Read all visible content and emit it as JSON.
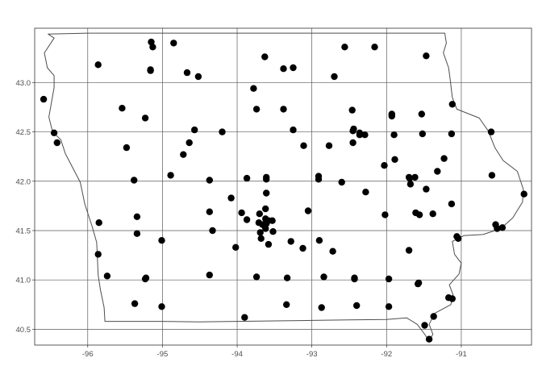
{
  "chart_data": {
    "type": "scatter",
    "title": "",
    "xlabel": "",
    "ylabel": "",
    "xlim": [
      -96.71,
      -90.06
    ],
    "ylim": [
      40.34,
      43.55
    ],
    "x_ticks": [
      -96,
      -95,
      -94,
      -93,
      -92,
      -91
    ],
    "y_ticks": [
      40.5,
      41.0,
      41.5,
      42.0,
      42.5,
      43.0
    ],
    "x_tick_labels": [
      "-96",
      "-95",
      "-94",
      "-93",
      "-92",
      "-91"
    ],
    "y_tick_labels": [
      "40.5",
      "41.0",
      "41.5",
      "42.0",
      "42.5",
      "43.0"
    ],
    "grid": true,
    "colors": {
      "points": "#000000",
      "boundary": "#4d4d4d",
      "grid": "#5a5a5a",
      "frame": "#333333"
    },
    "boundary": [
      [
        -96.53,
        43.49
      ],
      [
        -96.45,
        43.45
      ],
      [
        -96.58,
        43.3
      ],
      [
        -96.54,
        43.15
      ],
      [
        -96.45,
        43.07
      ],
      [
        -96.45,
        42.95
      ],
      [
        -96.52,
        42.65
      ],
      [
        -96.47,
        42.5
      ],
      [
        -96.36,
        42.42
      ],
      [
        -96.3,
        42.28
      ],
      [
        -96.1,
        41.99
      ],
      [
        -96.04,
        41.77
      ],
      [
        -95.94,
        41.54
      ],
      [
        -95.88,
        41.38
      ],
      [
        -95.86,
        41.05
      ],
      [
        -95.83,
        40.9
      ],
      [
        -95.78,
        40.72
      ],
      [
        -95.77,
        40.58
      ],
      [
        -95.6,
        40.58
      ],
      [
        -95.0,
        40.58
      ],
      [
        -94.5,
        40.575
      ],
      [
        -94.0,
        40.58
      ],
      [
        -93.5,
        40.585
      ],
      [
        -93.0,
        40.59
      ],
      [
        -92.5,
        40.595
      ],
      [
        -92.0,
        40.6
      ],
      [
        -91.73,
        40.615
      ],
      [
        -91.59,
        40.55
      ],
      [
        -91.49,
        40.45
      ],
      [
        -91.43,
        40.38
      ],
      [
        -91.38,
        40.45
      ],
      [
        -91.43,
        40.55
      ],
      [
        -91.36,
        40.66
      ],
      [
        -91.14,
        40.75
      ],
      [
        -91.11,
        40.85
      ],
      [
        -91.16,
        40.95
      ],
      [
        -91.03,
        41.06
      ],
      [
        -91.0,
        41.17
      ],
      [
        -91.09,
        41.26
      ],
      [
        -91.12,
        41.39
      ],
      [
        -90.96,
        41.45
      ],
      [
        -90.71,
        41.46
      ],
      [
        -90.47,
        41.52
      ],
      [
        -90.31,
        41.63
      ],
      [
        -90.18,
        41.79
      ],
      [
        -90.17,
        41.92
      ],
      [
        -90.25,
        42.1
      ],
      [
        -90.44,
        42.21
      ],
      [
        -90.55,
        42.34
      ],
      [
        -90.64,
        42.51
      ],
      [
        -90.76,
        42.64
      ],
      [
        -91.06,
        42.73
      ],
      [
        -91.12,
        42.85
      ],
      [
        -91.15,
        43.04
      ],
      [
        -91.17,
        43.15
      ],
      [
        -91.24,
        43.3
      ],
      [
        -91.2,
        43.4
      ],
      [
        -91.22,
        43.5
      ],
      [
        -91.5,
        43.5
      ],
      [
        -92.0,
        43.5
      ],
      [
        -93.0,
        43.5
      ],
      [
        -94.0,
        43.5
      ],
      [
        -95.0,
        43.5
      ],
      [
        -96.0,
        43.5
      ],
      [
        -96.53,
        43.49
      ]
    ],
    "points": [
      [
        -96.59,
        42.83
      ],
      [
        -96.45,
        42.49
      ],
      [
        -96.41,
        42.39
      ],
      [
        -95.86,
        43.18
      ],
      [
        -95.54,
        42.74
      ],
      [
        -95.48,
        42.34
      ],
      [
        -95.38,
        42.01
      ],
      [
        -95.34,
        41.64
      ],
      [
        -95.34,
        41.47
      ],
      [
        -95.85,
        41.58
      ],
      [
        -95.86,
        41.26
      ],
      [
        -95.74,
        41.04
      ],
      [
        -95.37,
        40.76
      ],
      [
        -95.23,
        41.01
      ],
      [
        -95.22,
        41.02
      ],
      [
        -95.01,
        40.73
      ],
      [
        -95.23,
        42.64
      ],
      [
        -95.16,
        43.12
      ],
      [
        -95.16,
        43.13
      ],
      [
        -95.15,
        43.41
      ],
      [
        -95.13,
        43.36
      ],
      [
        -94.85,
        43.4
      ],
      [
        -94.67,
        43.1
      ],
      [
        -94.52,
        43.06
      ],
      [
        -94.57,
        42.52
      ],
      [
        -94.64,
        42.39
      ],
      [
        -94.72,
        42.27
      ],
      [
        -94.89,
        42.06
      ],
      [
        -94.37,
        42.01
      ],
      [
        -94.37,
        41.69
      ],
      [
        -94.33,
        41.5
      ],
      [
        -94.37,
        41.05
      ],
      [
        -95.01,
        41.4
      ],
      [
        -94.2,
        42.5
      ],
      [
        -94.08,
        41.83
      ],
      [
        -94.02,
        41.33
      ],
      [
        -93.94,
        41.68
      ],
      [
        -93.87,
        41.61
      ],
      [
        -93.87,
        42.03
      ],
      [
        -93.78,
        42.94
      ],
      [
        -93.74,
        42.73
      ],
      [
        -93.74,
        41.03
      ],
      [
        -93.9,
        40.62
      ],
      [
        -93.63,
        43.26
      ],
      [
        -93.38,
        43.14
      ],
      [
        -93.25,
        43.15
      ],
      [
        -93.38,
        42.73
      ],
      [
        -93.25,
        42.52
      ],
      [
        -93.11,
        42.36
      ],
      [
        -93.61,
        42.04
      ],
      [
        -93.61,
        42.02
      ],
      [
        -93.61,
        41.88
      ],
      [
        -93.62,
        41.72
      ],
      [
        -93.7,
        41.67
      ],
      [
        -93.71,
        41.58
      ],
      [
        -93.66,
        41.56
      ],
      [
        -93.62,
        41.62
      ],
      [
        -93.61,
        41.57
      ],
      [
        -93.58,
        41.6
      ],
      [
        -93.62,
        41.52
      ],
      [
        -93.69,
        41.48
      ],
      [
        -93.53,
        41.6
      ],
      [
        -93.52,
        41.49
      ],
      [
        -93.58,
        41.36
      ],
      [
        -93.68,
        41.42
      ],
      [
        -93.05,
        41.7
      ],
      [
        -93.28,
        41.39
      ],
      [
        -93.12,
        41.32
      ],
      [
        -93.33,
        41.02
      ],
      [
        -93.34,
        40.75
      ],
      [
        -92.9,
        41.4
      ],
      [
        -92.84,
        41.03
      ],
      [
        -92.87,
        40.72
      ],
      [
        -92.72,
        41.29
      ],
      [
        -92.91,
        42.05
      ],
      [
        -92.91,
        42.02
      ],
      [
        -92.6,
        41.99
      ],
      [
        -92.77,
        42.36
      ],
      [
        -92.7,
        43.06
      ],
      [
        -92.56,
        43.36
      ],
      [
        -92.16,
        43.36
      ],
      [
        -92.46,
        42.72
      ],
      [
        -92.44,
        42.53
      ],
      [
        -92.45,
        42.51
      ],
      [
        -92.45,
        42.39
      ],
      [
        -92.36,
        42.49
      ],
      [
        -92.36,
        42.47
      ],
      [
        -92.29,
        42.47
      ],
      [
        -92.28,
        41.89
      ],
      [
        -92.43,
        41.02
      ],
      [
        -92.43,
        41.01
      ],
      [
        -92.4,
        40.74
      ],
      [
        -91.97,
        40.73
      ],
      [
        -91.97,
        41.01
      ],
      [
        -92.02,
        41.66
      ],
      [
        -92.03,
        42.16
      ],
      [
        -91.93,
        42.68
      ],
      [
        -91.93,
        42.66
      ],
      [
        -91.9,
        42.47
      ],
      [
        -91.89,
        42.22
      ],
      [
        -91.7,
        42.04
      ],
      [
        -91.69,
        42.03
      ],
      [
        -91.68,
        41.97
      ],
      [
        -91.62,
        42.04
      ],
      [
        -91.61,
        41.68
      ],
      [
        -91.56,
        41.66
      ],
      [
        -91.52,
        42.48
      ],
      [
        -91.47,
        41.92
      ],
      [
        -91.53,
        42.68
      ],
      [
        -91.47,
        43.27
      ],
      [
        -91.38,
        41.67
      ],
      [
        -91.32,
        42.1
      ],
      [
        -91.23,
        42.23
      ],
      [
        -91.13,
        42.48
      ],
      [
        -91.12,
        42.78
      ],
      [
        -91.13,
        41.77
      ],
      [
        -91.06,
        41.44
      ],
      [
        -91.04,
        41.42
      ],
      [
        -91.58,
        40.96
      ],
      [
        -91.57,
        40.97
      ],
      [
        -91.7,
        41.3
      ],
      [
        -91.17,
        40.82
      ],
      [
        -91.12,
        40.81
      ],
      [
        -91.37,
        40.63
      ],
      [
        -91.49,
        40.54
      ],
      [
        -91.43,
        40.4
      ],
      [
        -90.6,
        42.5
      ],
      [
        -90.59,
        42.06
      ],
      [
        -90.54,
        41.56
      ],
      [
        -90.52,
        41.52
      ],
      [
        -90.45,
        41.53
      ],
      [
        -90.16,
        41.87
      ]
    ]
  }
}
